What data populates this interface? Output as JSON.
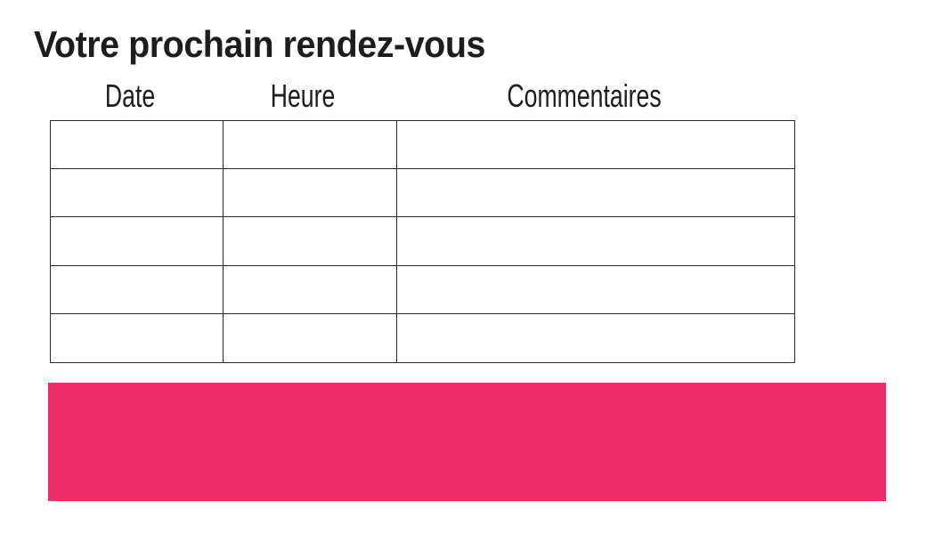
{
  "title": "Votre prochain rendez-vous",
  "colors": {
    "background": "#ffffff",
    "text": "#1d1d1b",
    "table_border": "#2a2a28",
    "banner_pink": "#ed2d67"
  },
  "table": {
    "headers": [
      "Date",
      "Heure",
      "Commentaires"
    ],
    "rows": [
      [
        "",
        "",
        ""
      ],
      [
        "",
        "",
        ""
      ],
      [
        "",
        "",
        ""
      ],
      [
        "",
        "",
        ""
      ],
      [
        "",
        "",
        ""
      ]
    ]
  }
}
